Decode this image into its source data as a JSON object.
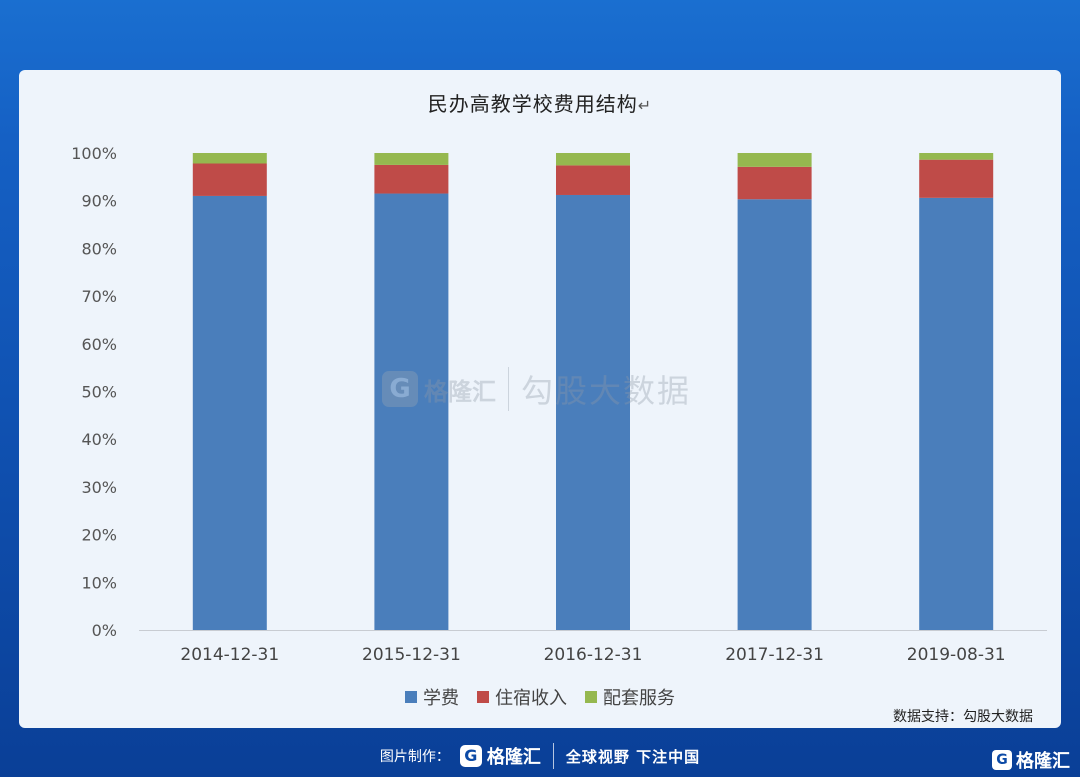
{
  "chart_data": {
    "type": "bar",
    "stacked": true,
    "title": "民办高教学校费用结构",
    "categories": [
      "2014-12-31",
      "2015-12-31",
      "2016-12-31",
      "2017-12-31",
      "2019-08-31"
    ],
    "series": [
      {
        "name": "学费",
        "color": "#4a7ebb",
        "values": [
          91.0,
          91.5,
          91.2,
          90.3,
          90.6
        ]
      },
      {
        "name": "住宿收入",
        "color": "#bf4b48",
        "values": [
          6.8,
          6.0,
          6.2,
          6.8,
          8.0
        ]
      },
      {
        "name": "配套服务",
        "color": "#95b84f",
        "values": [
          2.2,
          2.5,
          2.6,
          2.9,
          1.4
        ]
      }
    ],
    "yticks": [
      "0%",
      "10%",
      "20%",
      "30%",
      "40%",
      "50%",
      "60%",
      "70%",
      "80%",
      "90%",
      "100%"
    ],
    "ylim": [
      0,
      100
    ],
    "xlabel": "",
    "ylabel": "",
    "grid": false,
    "legend_position": "bottom"
  },
  "title_return_mark": "↵",
  "source_text": "数据支持：勾股大数据",
  "watermark": {
    "logo_letter": "G",
    "brand": "格隆汇",
    "text": "勾股大数据"
  },
  "footer": {
    "label": "图片制作：",
    "logo_letter": "G",
    "brand": "格隆汇",
    "slogan": "全球视野 下注中国"
  },
  "corner": {
    "logo_letter": "G",
    "brand": "格隆汇"
  }
}
